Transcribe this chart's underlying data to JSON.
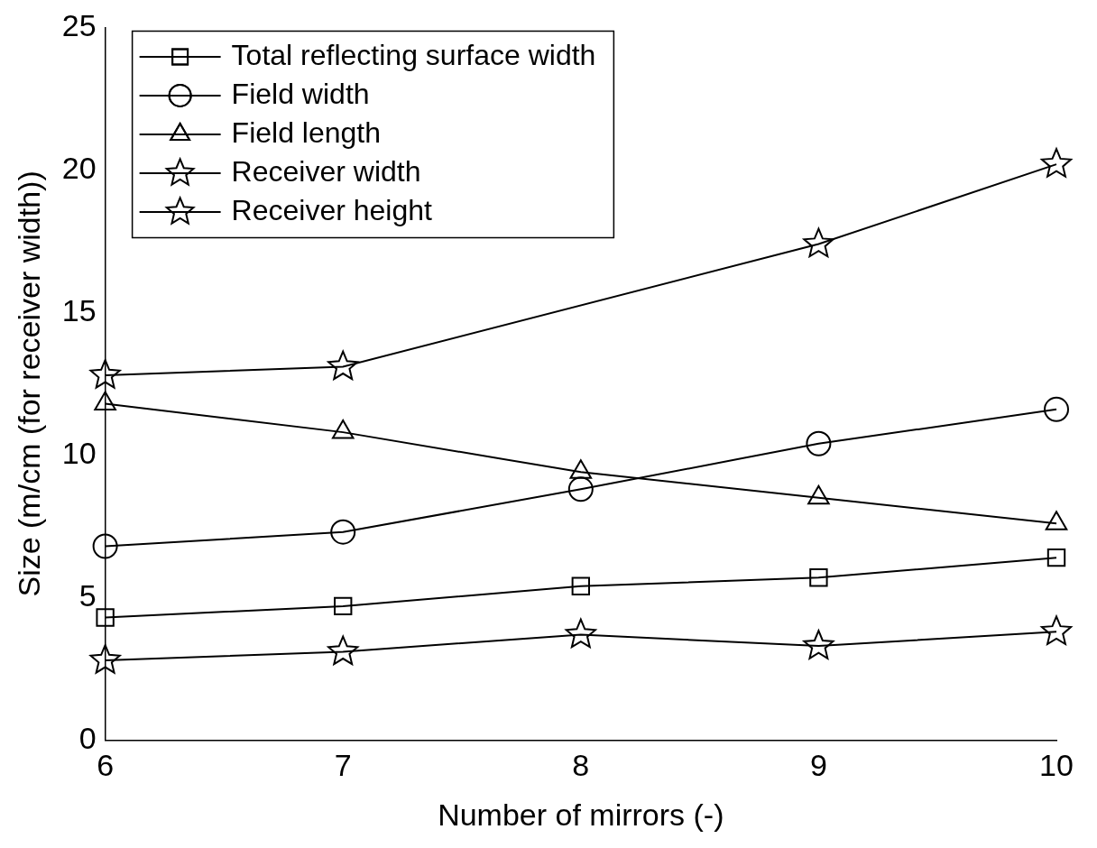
{
  "chart_data": {
    "type": "line",
    "xlabel": "Number of mirrors (-)",
    "ylabel": "Size (m/cm (for receiver width))",
    "x": [
      6,
      7,
      8,
      9,
      10
    ],
    "xlim": [
      6,
      10
    ],
    "xticks": [
      6,
      7,
      8,
      9,
      10
    ],
    "ylim": [
      0,
      25
    ],
    "yticks": [
      0,
      5,
      10,
      15,
      20,
      25
    ],
    "series": [
      {
        "name": "Total reflecting surface width",
        "color": "#000000",
        "marker": "square",
        "values": [
          4.3,
          4.7,
          5.4,
          5.7,
          6.4
        ]
      },
      {
        "name": "Field width",
        "color": "#000000",
        "marker": "circle",
        "values": [
          6.8,
          7.3,
          8.8,
          10.4,
          11.6
        ]
      },
      {
        "name": "Field length",
        "color": "#000000",
        "marker": "triangle",
        "values": [
          11.8,
          10.8,
          9.4,
          8.5,
          7.6
        ]
      },
      {
        "name": "Receiver width",
        "color": "#000000",
        "marker": "star",
        "values": [
          12.8,
          13.1,
          null,
          17.4,
          20.2
        ]
      },
      {
        "name": "Receiver height",
        "color": "#000000",
        "marker": "star",
        "values": [
          2.8,
          3.1,
          3.7,
          3.3,
          3.8
        ]
      }
    ],
    "legend": "top left",
    "grid": false,
    "line_style": "solid"
  }
}
